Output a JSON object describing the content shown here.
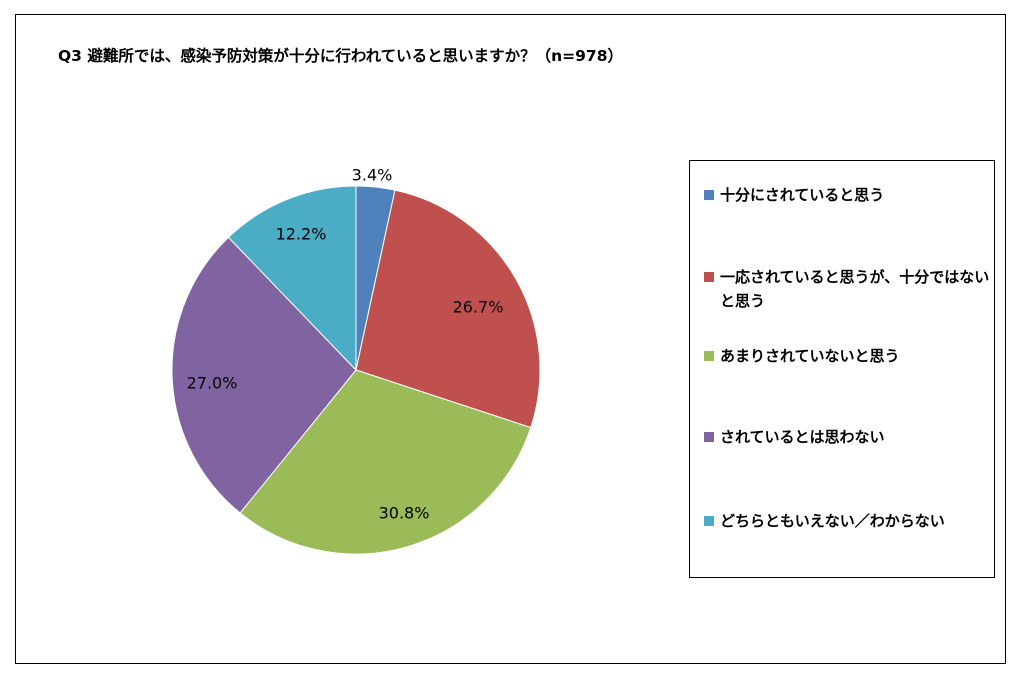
{
  "title": "Q3 避難所では、感染予防対策が十分に行われていると思いますか？（n=978）",
  "chart_data": {
    "type": "pie",
    "title": "Q3 避難所では、感染予防対策が十分に行われていると思いますか？（n=978）",
    "slices": [
      {
        "label": "十分にされていると思う",
        "value": 3.4,
        "display": "3.4%",
        "color": "#4f81bd"
      },
      {
        "label": "一応されていると思うが、十分ではないと思う",
        "value": 26.7,
        "display": "26.7%",
        "color": "#c0504d"
      },
      {
        "label": "あまりされていないと思う",
        "value": 30.8,
        "display": "30.8%",
        "color": "#9bbb59"
      },
      {
        "label": "されているとは思わない",
        "value": 27.0,
        "display": "27.0%",
        "color": "#8064a2"
      },
      {
        "label": "どちらともいえない／わからない",
        "value": 12.2,
        "display": "12.2%",
        "color": "#4bacc6"
      }
    ],
    "start": "top",
    "direction": "clockwise",
    "legend_position": "right"
  },
  "legend": {
    "items": [
      {
        "label": "十分にされていると思う",
        "color": "#4f81bd"
      },
      {
        "label": "一応されていると思うが、十分ではないと思う",
        "color": "#c0504d"
      },
      {
        "label": "あまりされていないと思う",
        "color": "#9bbb59"
      },
      {
        "label": "されているとは思わない",
        "color": "#8064a2"
      },
      {
        "label": "どちらともいえない／わからない",
        "color": "#4bacc6"
      }
    ]
  }
}
